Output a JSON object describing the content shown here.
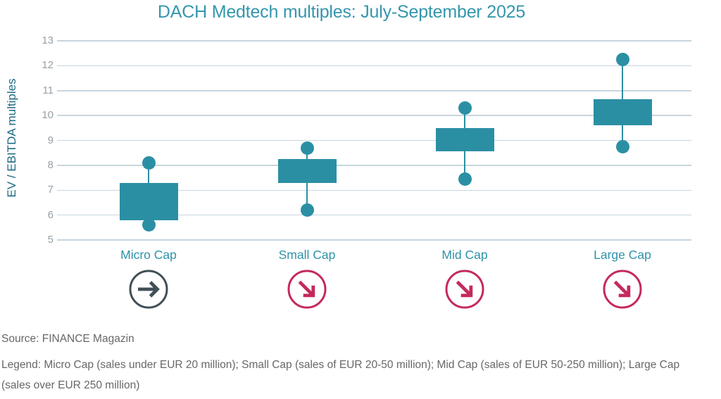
{
  "title": "DACH Medtech multiples: July-September 2025",
  "y_axis": {
    "label": "EV / EBITDA multiples",
    "ticks": [
      13,
      12,
      11,
      10,
      9,
      8,
      7,
      6,
      5
    ]
  },
  "source": "Source: FINANCE Magazin",
  "legend": {
    "line1": "Legend: Micro Cap (sales under EUR 20 million); Small Cap (sales of EUR 20-50 million); Mid Cap (sales of EUR 50-250 million); Large Cap",
    "line2": "(sales over EUR 250 million)"
  },
  "colors": {
    "box_teal": "#2b8fa4",
    "title_teal": "#3596ad",
    "category_teal": "#2e93a9",
    "axis_label_teal": "#1d6b85",
    "gridline": "#c7d6de",
    "tick_gray": "#9aa0a4",
    "text_gray": "#676767",
    "arrow_flat": "#414f56",
    "arrow_down": "#c42a5b"
  },
  "chart_data": {
    "type": "box",
    "title": "DACH Medtech multiples: July-September 2025",
    "xlabel": "",
    "ylabel": "EV / EBITDA multiples",
    "ylim": [
      5,
      13
    ],
    "grid": true,
    "legend_position": "none",
    "categories": [
      "Micro Cap",
      "Small Cap",
      "Mid Cap",
      "Large Cap"
    ],
    "series": [
      {
        "category": "Micro Cap",
        "whisker_low": 5.6,
        "box_low": 5.8,
        "box_high": 7.3,
        "whisker_high": 8.1,
        "trend": "flat"
      },
      {
        "category": "Small Cap",
        "whisker_low": 6.2,
        "box_low": 7.3,
        "box_high": 8.25,
        "whisker_high": 8.7,
        "trend": "down"
      },
      {
        "category": "Mid Cap",
        "whisker_low": 7.45,
        "box_low": 8.55,
        "box_high": 9.5,
        "whisker_high": 10.3,
        "trend": "down"
      },
      {
        "category": "Large Cap",
        "whisker_low": 8.75,
        "box_low": 9.6,
        "box_high": 10.65,
        "whisker_high": 12.25,
        "trend": "down"
      }
    ]
  }
}
